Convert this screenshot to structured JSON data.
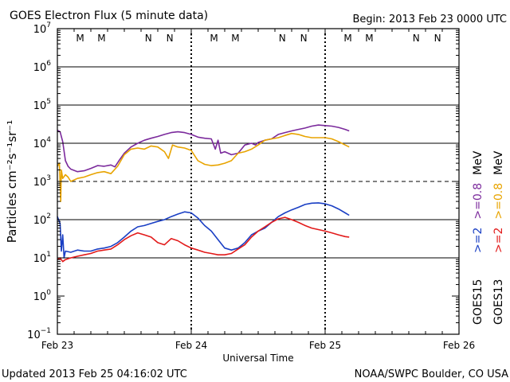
{
  "chart_data": {
    "type": "line",
    "title": "GOES Electron Flux (5 minute data)",
    "begin_label": "Begin: 2013 Feb 23 0000 UTC",
    "xlabel": "Universal Time",
    "ylabel": "Particles cm⁻²s⁻¹sr⁻¹",
    "y_scale": "log",
    "ylim": [
      0.1,
      10000000
    ],
    "y_ticks": [
      {
        "value": 10000000,
        "base": "10",
        "exp": "7"
      },
      {
        "value": 1000000,
        "base": "10",
        "exp": "6"
      },
      {
        "value": 100000,
        "base": "10",
        "exp": "5"
      },
      {
        "value": 10000,
        "base": "10",
        "exp": "4"
      },
      {
        "value": 1000,
        "base": "10",
        "exp": "3"
      },
      {
        "value": 100,
        "base": "10",
        "exp": "2"
      },
      {
        "value": 10,
        "base": "10",
        "exp": "1"
      },
      {
        "value": 1,
        "base": "10",
        "exp": "0"
      },
      {
        "value": 0.1,
        "base": "10",
        "exp": "−1"
      }
    ],
    "xlim_days": [
      0,
      3
    ],
    "x_ticks": [
      {
        "day": 0,
        "label": "Feb 23"
      },
      {
        "day": 1,
        "label": "Feb 24"
      },
      {
        "day": 2,
        "label": "Feb 25"
      },
      {
        "day": 3,
        "label": "Feb 26"
      }
    ],
    "threshold_line": {
      "value": 1000,
      "style": "dashed"
    },
    "grid_lines": [
      10,
      100,
      10000,
      100000,
      1000000
    ],
    "local_time_markers": [
      {
        "day": 0.17,
        "label": "M",
        "color": "#cc2222"
      },
      {
        "day": 0.33,
        "label": "M",
        "color": "#2255cc"
      },
      {
        "day": 0.68,
        "label": "N",
        "color": "#cc2222"
      },
      {
        "day": 0.84,
        "label": "N",
        "color": "#2255cc"
      },
      {
        "day": 1.17,
        "label": "M",
        "color": "#cc2222"
      },
      {
        "day": 1.33,
        "label": "M",
        "color": "#2255cc"
      },
      {
        "day": 1.68,
        "label": "N",
        "color": "#cc2222"
      },
      {
        "day": 1.84,
        "label": "N",
        "color": "#2255cc"
      },
      {
        "day": 2.17,
        "label": "M",
        "color": "#cc2222"
      },
      {
        "day": 2.33,
        "label": "M",
        "color": "#2255cc"
      },
      {
        "day": 2.68,
        "label": "N",
        "color": "#cc2222"
      },
      {
        "day": 2.84,
        "label": "N",
        "color": "#2255cc"
      }
    ],
    "series": [
      {
        "name": "GOES15 >=0.8 MeV",
        "color": "#7b2a9c",
        "points": [
          [
            0.0,
            22000
          ],
          [
            0.02,
            20000
          ],
          [
            0.04,
            11000
          ],
          [
            0.06,
            3500
          ],
          [
            0.08,
            2500
          ],
          [
            0.1,
            2100
          ],
          [
            0.15,
            1800
          ],
          [
            0.2,
            1900
          ],
          [
            0.25,
            2200
          ],
          [
            0.3,
            2600
          ],
          [
            0.35,
            2500
          ],
          [
            0.4,
            2700
          ],
          [
            0.43,
            2400
          ],
          [
            0.46,
            3500
          ],
          [
            0.5,
            5500
          ],
          [
            0.55,
            8000
          ],
          [
            0.6,
            10000
          ],
          [
            0.65,
            12000
          ],
          [
            0.7,
            13500
          ],
          [
            0.75,
            15000
          ],
          [
            0.8,
            17000
          ],
          [
            0.85,
            19000
          ],
          [
            0.9,
            20000
          ],
          [
            0.95,
            19000
          ],
          [
            1.0,
            17000
          ],
          [
            1.05,
            14500
          ],
          [
            1.1,
            13500
          ],
          [
            1.15,
            13000
          ],
          [
            1.18,
            7000
          ],
          [
            1.2,
            12000
          ],
          [
            1.22,
            5500
          ],
          [
            1.25,
            6000
          ],
          [
            1.3,
            5000
          ],
          [
            1.35,
            5500
          ],
          [
            1.4,
            9000
          ],
          [
            1.45,
            10000
          ],
          [
            1.48,
            9000
          ],
          [
            1.5,
            10500
          ],
          [
            1.55,
            12000
          ],
          [
            1.6,
            13000
          ],
          [
            1.65,
            17000
          ],
          [
            1.7,
            19000
          ],
          [
            1.75,
            21000
          ],
          [
            1.8,
            23000
          ],
          [
            1.85,
            25000
          ],
          [
            1.9,
            28000
          ],
          [
            1.95,
            30000
          ],
          [
            2.0,
            29000
          ],
          [
            2.05,
            28000
          ],
          [
            2.1,
            26000
          ],
          [
            2.15,
            23000
          ],
          [
            2.18,
            21000
          ]
        ]
      },
      {
        "name": "GOES13 >=0.8 MeV",
        "color": "#e8a400",
        "points": [
          [
            0.0,
            2500
          ],
          [
            0.015,
            3000
          ],
          [
            0.025,
            300
          ],
          [
            0.03,
            2000
          ],
          [
            0.04,
            1200
          ],
          [
            0.06,
            1500
          ],
          [
            0.08,
            1300
          ],
          [
            0.1,
            1000
          ],
          [
            0.15,
            1200
          ],
          [
            0.2,
            1300
          ],
          [
            0.25,
            1500
          ],
          [
            0.3,
            1700
          ],
          [
            0.35,
            1800
          ],
          [
            0.4,
            1600
          ],
          [
            0.45,
            2500
          ],
          [
            0.5,
            5000
          ],
          [
            0.55,
            7000
          ],
          [
            0.6,
            7500
          ],
          [
            0.65,
            7000
          ],
          [
            0.7,
            8500
          ],
          [
            0.75,
            8000
          ],
          [
            0.8,
            6000
          ],
          [
            0.83,
            4000
          ],
          [
            0.86,
            9000
          ],
          [
            0.9,
            8000
          ],
          [
            0.95,
            7500
          ],
          [
            1.0,
            6500
          ],
          [
            1.05,
            3500
          ],
          [
            1.1,
            2800
          ],
          [
            1.15,
            2600
          ],
          [
            1.2,
            2700
          ],
          [
            1.25,
            3000
          ],
          [
            1.3,
            3500
          ],
          [
            1.35,
            5500
          ],
          [
            1.4,
            6000
          ],
          [
            1.45,
            7000
          ],
          [
            1.5,
            9000
          ],
          [
            1.55,
            12000
          ],
          [
            1.6,
            13000
          ],
          [
            1.65,
            14000
          ],
          [
            1.7,
            16000
          ],
          [
            1.75,
            18000
          ],
          [
            1.8,
            17000
          ],
          [
            1.85,
            15000
          ],
          [
            1.9,
            14000
          ],
          [
            1.95,
            14000
          ],
          [
            2.0,
            14000
          ],
          [
            2.05,
            13000
          ],
          [
            2.1,
            11000
          ],
          [
            2.15,
            9000
          ],
          [
            2.18,
            8000
          ]
        ]
      },
      {
        "name": "GOES15 >=2 MeV",
        "color": "#1a3fc4",
        "points": [
          [
            0.0,
            120
          ],
          [
            0.02,
            80
          ],
          [
            0.03,
            15
          ],
          [
            0.04,
            40
          ],
          [
            0.05,
            10
          ],
          [
            0.06,
            15
          ],
          [
            0.1,
            14
          ],
          [
            0.15,
            16
          ],
          [
            0.2,
            15
          ],
          [
            0.25,
            15
          ],
          [
            0.3,
            17
          ],
          [
            0.35,
            18
          ],
          [
            0.4,
            20
          ],
          [
            0.45,
            25
          ],
          [
            0.5,
            35
          ],
          [
            0.55,
            50
          ],
          [
            0.6,
            65
          ],
          [
            0.65,
            70
          ],
          [
            0.7,
            80
          ],
          [
            0.75,
            90
          ],
          [
            0.8,
            100
          ],
          [
            0.85,
            120
          ],
          [
            0.9,
            140
          ],
          [
            0.95,
            160
          ],
          [
            1.0,
            150
          ],
          [
            1.05,
            110
          ],
          [
            1.1,
            70
          ],
          [
            1.15,
            50
          ],
          [
            1.2,
            30
          ],
          [
            1.25,
            18
          ],
          [
            1.3,
            16
          ],
          [
            1.35,
            18
          ],
          [
            1.4,
            25
          ],
          [
            1.45,
            40
          ],
          [
            1.5,
            50
          ],
          [
            1.55,
            60
          ],
          [
            1.6,
            85
          ],
          [
            1.65,
            120
          ],
          [
            1.7,
            150
          ],
          [
            1.75,
            180
          ],
          [
            1.8,
            210
          ],
          [
            1.85,
            250
          ],
          [
            1.9,
            270
          ],
          [
            1.95,
            275
          ],
          [
            2.0,
            260
          ],
          [
            2.05,
            230
          ],
          [
            2.1,
            190
          ],
          [
            2.15,
            150
          ],
          [
            2.18,
            130
          ]
        ]
      },
      {
        "name": "GOES13 >=2 MeV",
        "color": "#e21a1a",
        "points": [
          [
            0.0,
            9
          ],
          [
            0.02,
            10
          ],
          [
            0.04,
            8
          ],
          [
            0.06,
            9
          ],
          [
            0.1,
            10
          ],
          [
            0.15,
            11
          ],
          [
            0.2,
            12
          ],
          [
            0.25,
            13
          ],
          [
            0.3,
            15
          ],
          [
            0.35,
            16
          ],
          [
            0.4,
            17
          ],
          [
            0.45,
            22
          ],
          [
            0.5,
            30
          ],
          [
            0.55,
            38
          ],
          [
            0.6,
            45
          ],
          [
            0.65,
            40
          ],
          [
            0.7,
            35
          ],
          [
            0.75,
            25
          ],
          [
            0.8,
            22
          ],
          [
            0.85,
            32
          ],
          [
            0.9,
            28
          ],
          [
            0.95,
            22
          ],
          [
            1.0,
            18
          ],
          [
            1.05,
            16
          ],
          [
            1.1,
            14
          ],
          [
            1.15,
            13
          ],
          [
            1.2,
            12
          ],
          [
            1.25,
            12
          ],
          [
            1.3,
            13
          ],
          [
            1.35,
            17
          ],
          [
            1.4,
            22
          ],
          [
            1.45,
            35
          ],
          [
            1.5,
            50
          ],
          [
            1.55,
            65
          ],
          [
            1.6,
            85
          ],
          [
            1.65,
            105
          ],
          [
            1.7,
            115
          ],
          [
            1.75,
            100
          ],
          [
            1.8,
            85
          ],
          [
            1.85,
            70
          ],
          [
            1.9,
            60
          ],
          [
            1.95,
            55
          ],
          [
            2.0,
            50
          ],
          [
            2.05,
            45
          ],
          [
            2.1,
            40
          ],
          [
            2.15,
            36
          ],
          [
            2.18,
            35
          ]
        ]
      }
    ],
    "legend": [
      {
        "prefix": "GOES15",
        "label": ">=2",
        "color": "#1a3fc4"
      },
      {
        "prefix": "",
        "label": ">=0.8",
        "color": "#7b2a9c"
      },
      {
        "prefix": "",
        "label": "MeV",
        "color": "#000000"
      },
      {
        "prefix": "GOES13",
        "label": ">=2",
        "color": "#e21a1a"
      },
      {
        "prefix": "",
        "label": ">=0.8",
        "color": "#e8a400"
      },
      {
        "prefix": "",
        "label": "MeV",
        "color": "#000000"
      }
    ],
    "legend_position": "right"
  },
  "footer": {
    "updated": "Updated 2013 Feb 25 04:16:02 UTC",
    "credit": "NOAA/SWPC Boulder, CO USA"
  },
  "colors": {
    "frame": "#000000",
    "background": "#ffffff"
  }
}
